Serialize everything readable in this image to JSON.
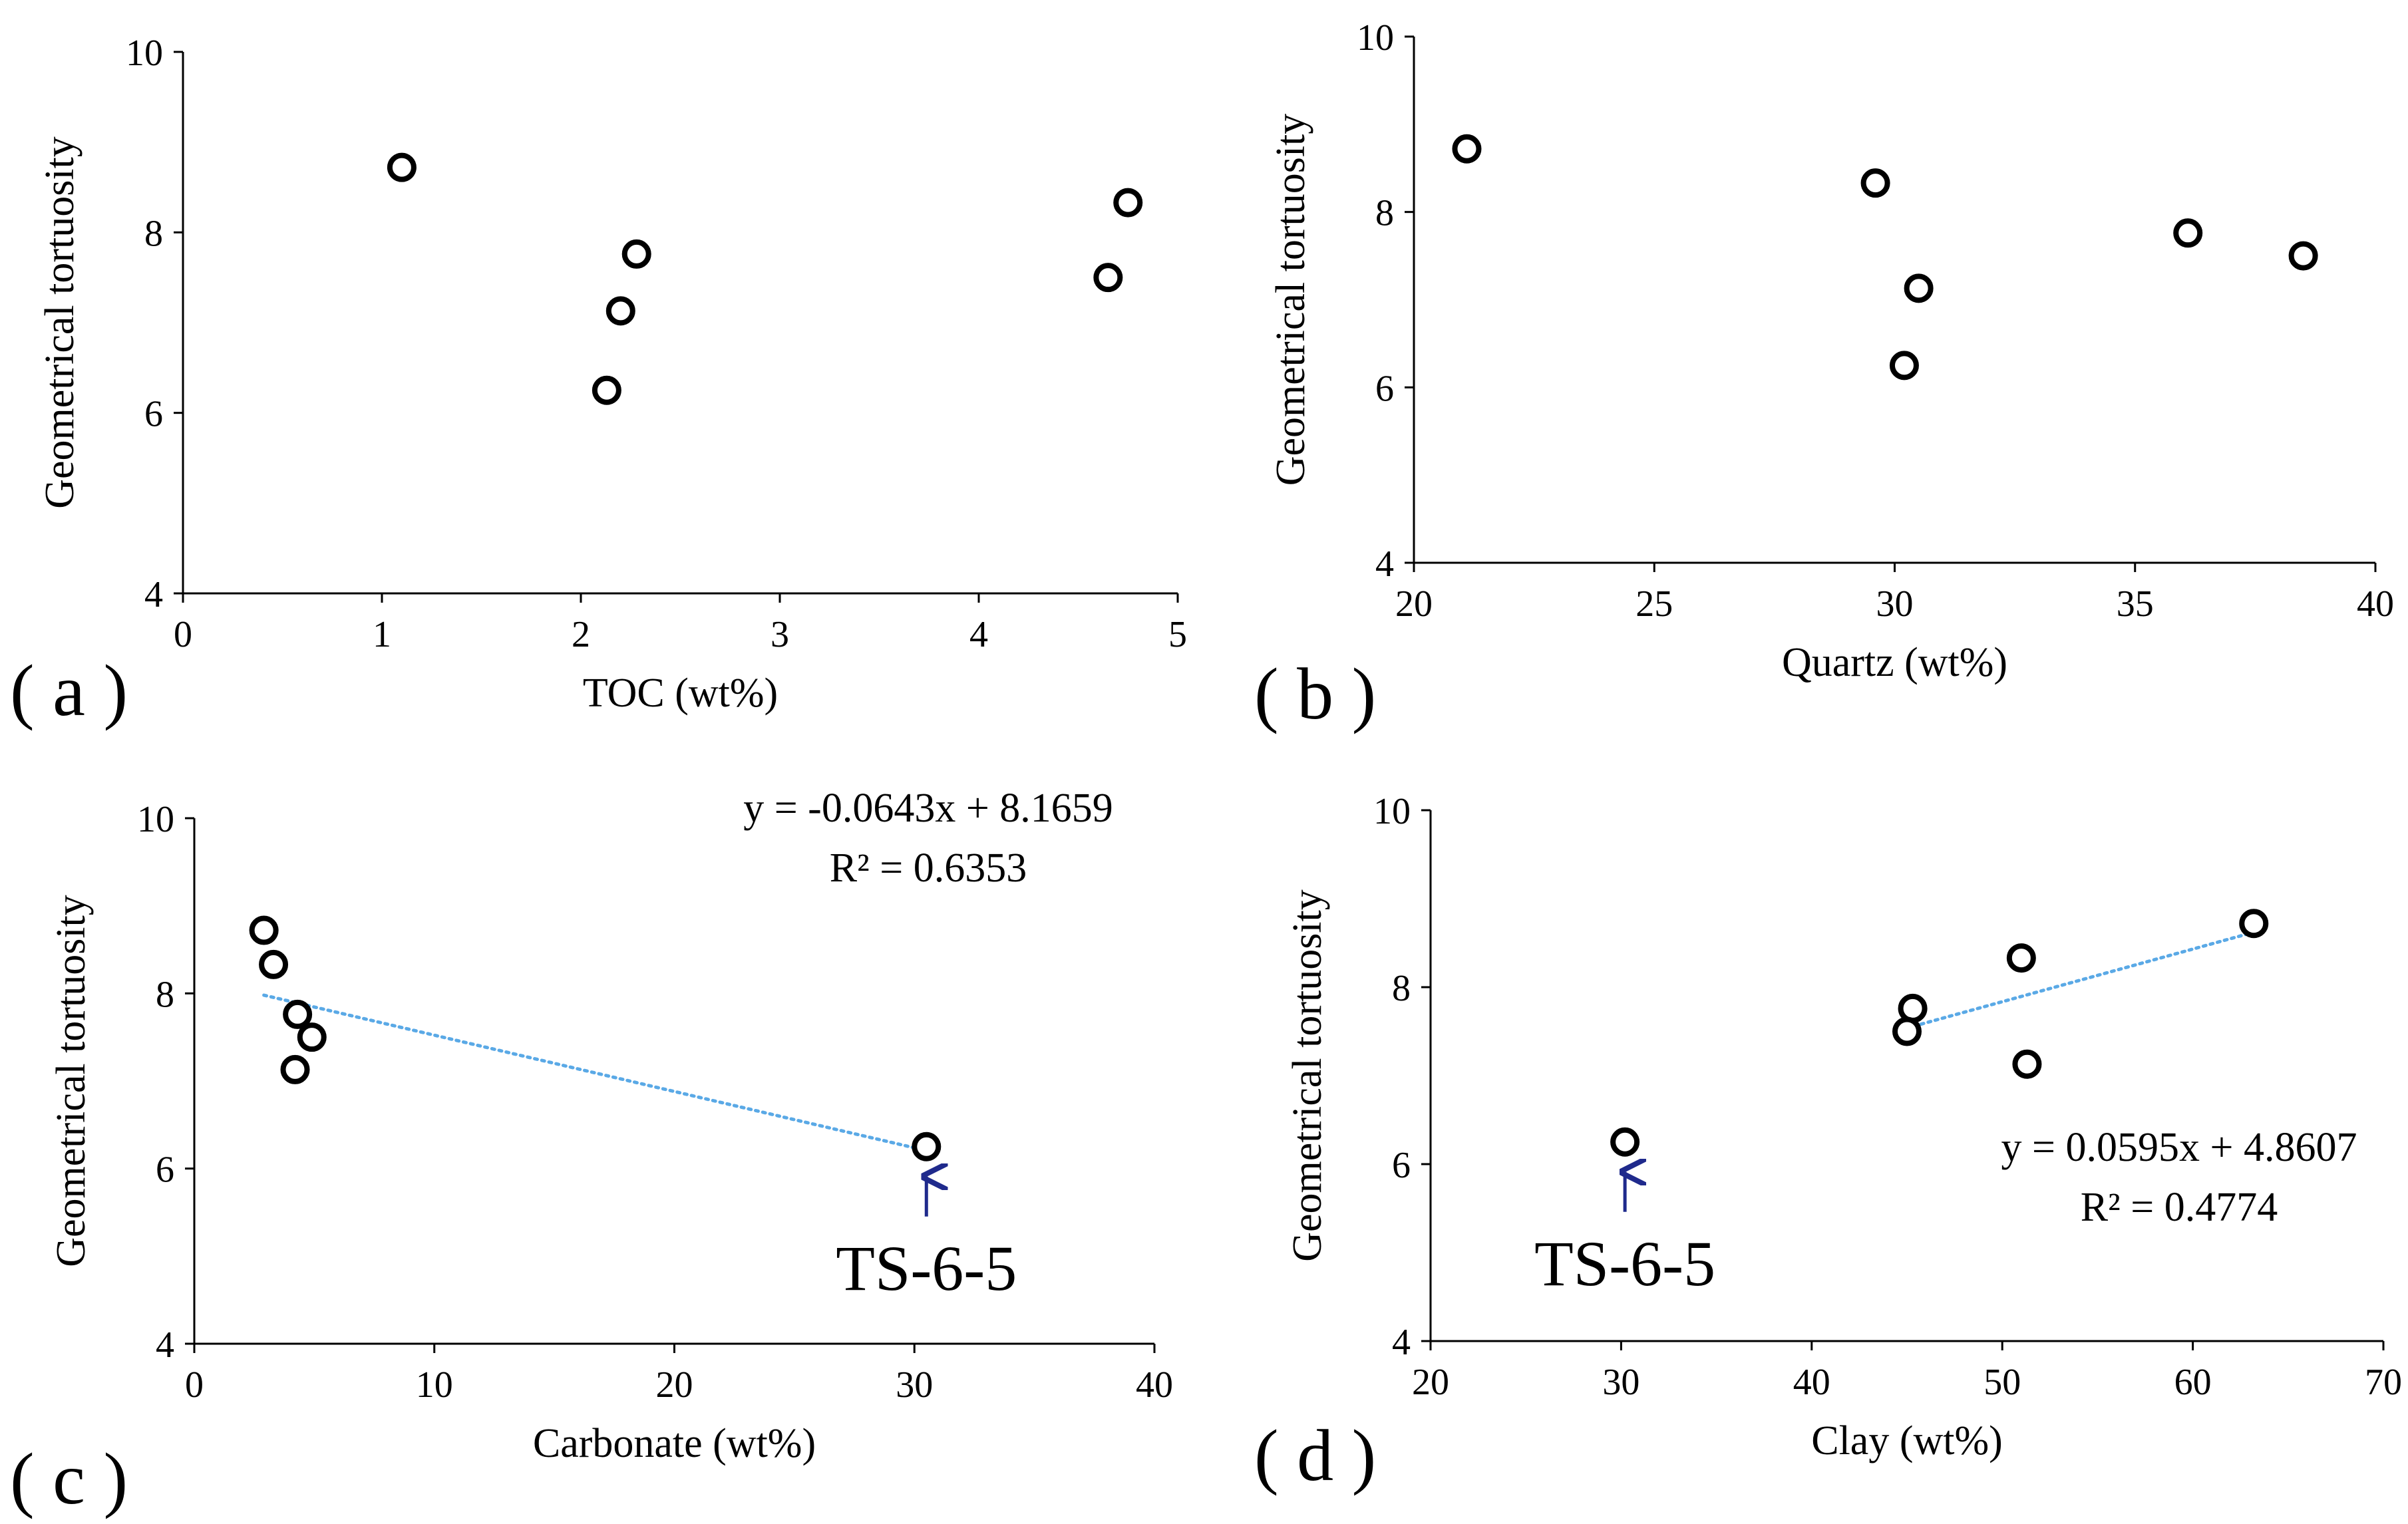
{
  "chart_data": [
    {
      "type": "scatter",
      "panel_label": "( a )",
      "xlabel": "TOC (wt%)",
      "ylabel": "Geometrical tortuosity",
      "xlim": [
        0,
        5
      ],
      "ylim": [
        4,
        10
      ],
      "xticks": [
        0,
        1,
        2,
        3,
        4,
        5
      ],
      "yticks": [
        4,
        6,
        8,
        10
      ],
      "grid": false,
      "marker": "open-circle",
      "series": [
        {
          "x": [
            1.1,
            2.28,
            2.2,
            2.13,
            4.65,
            4.75
          ],
          "y": [
            8.72,
            7.76,
            7.13,
            6.25,
            7.5,
            8.33
          ]
        }
      ]
    },
    {
      "type": "scatter",
      "panel_label": "( b )",
      "xlabel": "Quartz (wt%)",
      "ylabel": "Geometrical tortuosity",
      "xlim": [
        20,
        40
      ],
      "ylim": [
        4,
        10
      ],
      "xticks": [
        20,
        25,
        30,
        35,
        40
      ],
      "yticks": [
        4,
        6,
        8,
        10
      ],
      "grid": false,
      "marker": "open-circle",
      "series": [
        {
          "x": [
            21.1,
            29.6,
            30.5,
            30.2,
            36.1,
            38.5
          ],
          "y": [
            8.72,
            8.33,
            7.13,
            6.25,
            7.76,
            7.5
          ]
        }
      ]
    },
    {
      "type": "scatter",
      "panel_label": "( c )",
      "xlabel": "Carbonate (wt%)",
      "ylabel": "Geometrical tortuosity",
      "xlim": [
        0,
        40
      ],
      "ylim": [
        4,
        10
      ],
      "xticks": [
        0,
        10,
        20,
        30,
        40
      ],
      "yticks": [
        4,
        6,
        8,
        10
      ],
      "grid": false,
      "marker": "open-circle",
      "series": [
        {
          "x": [
            2.9,
            3.3,
            4.3,
            4.9,
            4.2,
            30.5
          ],
          "y": [
            8.72,
            8.33,
            7.76,
            7.5,
            7.13,
            6.25
          ]
        }
      ],
      "trendline": {
        "slope": -0.0643,
        "intercept": 8.1659,
        "x_range": [
          2.9,
          30.5
        ],
        "color": "#5aa9e6"
      },
      "equation": [
        "y = -0.0643x + 8.1659",
        "R² = 0.6353"
      ],
      "annotation": {
        "text": "TS-6-5",
        "x": 30.5,
        "y": 6.25,
        "arrow_color": "#1f2a8c"
      }
    },
    {
      "type": "scatter",
      "panel_label": "( d )",
      "xlabel": "Clay (wt%)",
      "ylabel": "Geometrical tortuosity",
      "xlim": [
        20,
        70
      ],
      "ylim": [
        4,
        10
      ],
      "xticks": [
        20,
        30,
        40,
        50,
        60,
        70
      ],
      "yticks": [
        4,
        6,
        8,
        10
      ],
      "grid": false,
      "marker": "open-circle",
      "series": [
        {
          "x": [
            63.2,
            51.0,
            45.3,
            45.0,
            51.3,
            30.2
          ],
          "y": [
            8.72,
            8.33,
            7.76,
            7.5,
            7.13,
            6.25
          ]
        }
      ],
      "trendline": {
        "slope": 0.0595,
        "intercept": 4.8607,
        "x_range": [
          45.0,
          63.2
        ],
        "color": "#5aa9e6"
      },
      "equation": [
        "y = 0.0595x + 4.8607",
        "R² = 0.4774"
      ],
      "annotation": {
        "text": "TS-6-5",
        "x": 30.2,
        "y": 6.25,
        "arrow_color": "#1f2a8c"
      }
    }
  ]
}
